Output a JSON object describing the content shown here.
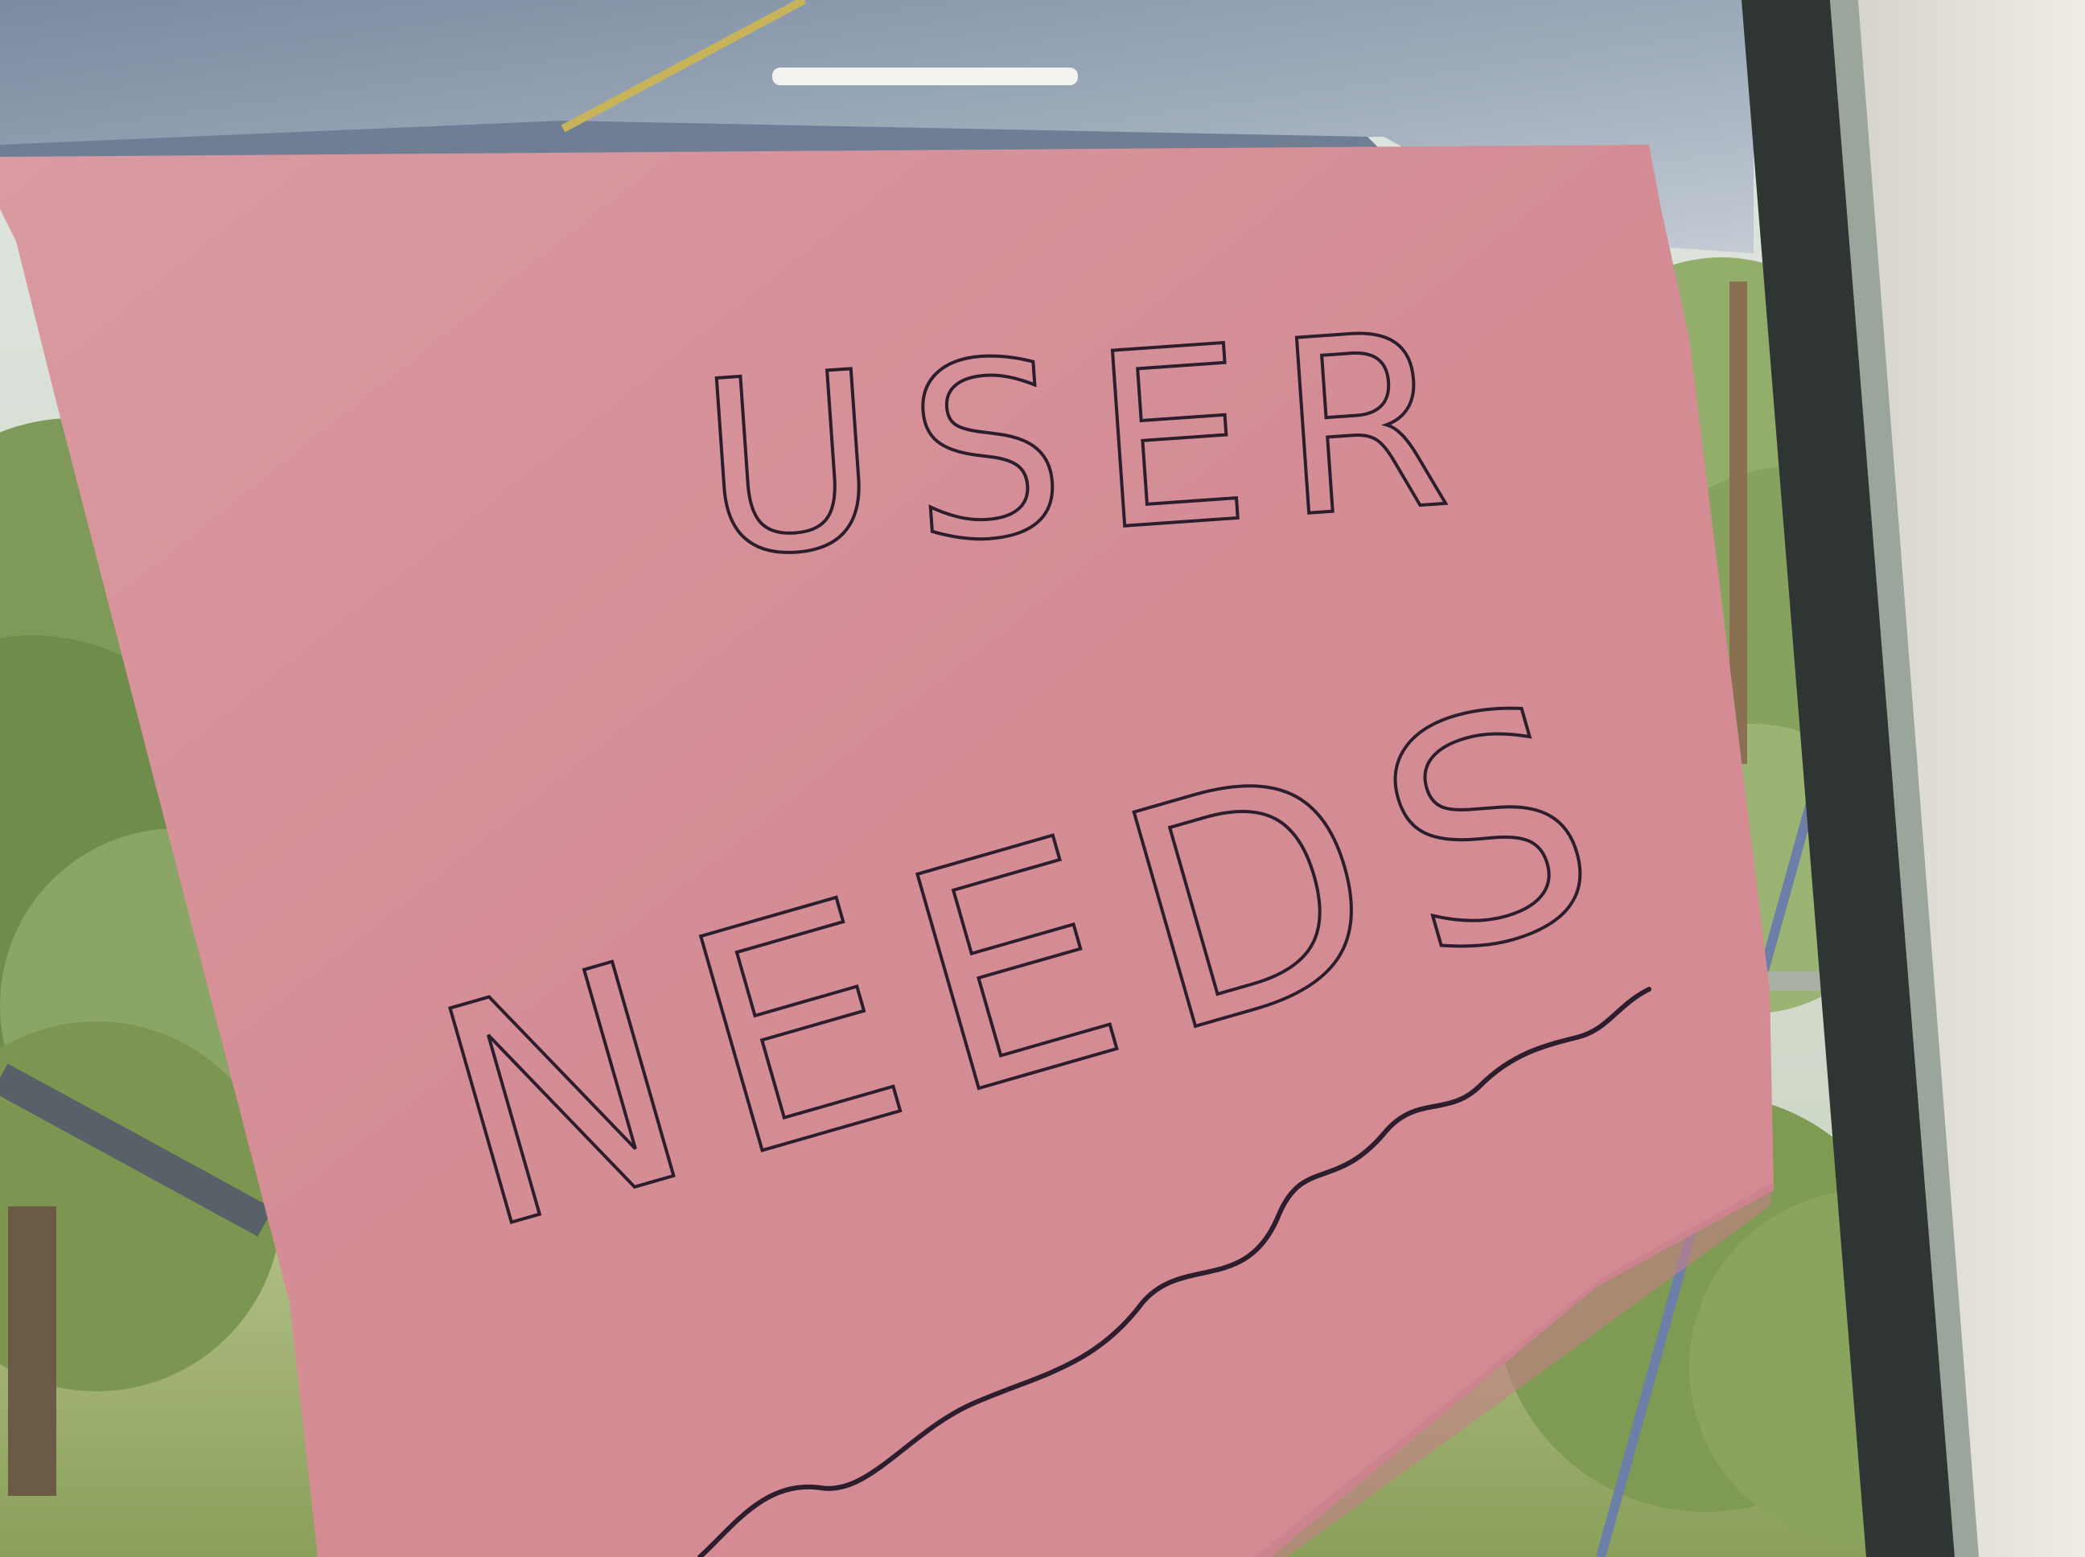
{
  "sign": {
    "line1": "USER",
    "line2": "NEEDS"
  },
  "colors": {
    "paper": "#d58f97",
    "ink": "#2c1e2c",
    "window_frame": "#2f3532",
    "wall": "#e6e4dc",
    "foliage": "#8fa760",
    "canopy": "#8a97a8"
  },
  "icon_names": [
    "pink-paper-sign",
    "wavy-underline",
    "window-frame",
    "trees-background"
  ]
}
